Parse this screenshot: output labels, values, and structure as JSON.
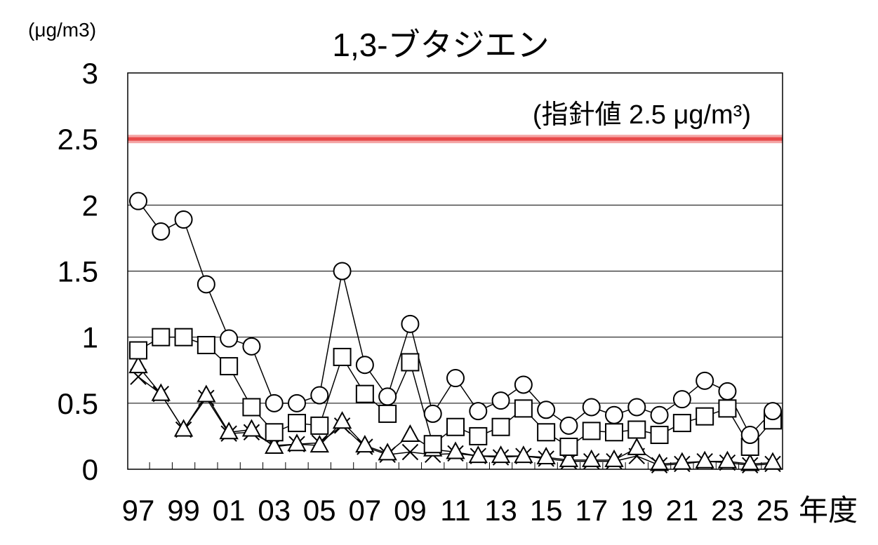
{
  "chart_data": {
    "type": "line",
    "title": "1,3-ブタジエン",
    "ylabel": "(μg/m3)",
    "xlabel": "年度",
    "ylim": [
      0,
      3
    ],
    "yticks": [
      "0",
      "0.5",
      "1",
      "1.5",
      "2",
      "2.5",
      "3"
    ],
    "grid": true,
    "x": [
      "97",
      "98",
      "99",
      "00",
      "01",
      "02",
      "03",
      "04",
      "05",
      "06",
      "07",
      "08",
      "09",
      "10",
      "11",
      "12",
      "13",
      "14",
      "15",
      "16",
      "17",
      "18",
      "19",
      "20",
      "21",
      "22",
      "23",
      "24",
      "25"
    ],
    "xtick_labels": [
      "97",
      "99",
      "01",
      "03",
      "05",
      "07",
      "09",
      "11",
      "13",
      "15",
      "17",
      "19",
      "21",
      "23",
      "25"
    ],
    "guideline": {
      "value": 2.5,
      "label": "(指針値 2.5 μg/m³)",
      "color": "#e84a4a"
    },
    "series": [
      {
        "marker": "circle",
        "values": [
          2.03,
          1.8,
          1.89,
          1.4,
          0.99,
          0.93,
          0.5,
          0.5,
          0.56,
          1.5,
          0.79,
          0.55,
          1.1,
          0.42,
          0.69,
          0.44,
          0.52,
          0.64,
          0.45,
          0.33,
          0.47,
          0.41,
          0.47,
          0.41,
          0.53,
          0.67,
          0.59,
          0.26,
          0.44
        ]
      },
      {
        "marker": "square",
        "values": [
          0.9,
          1.0,
          1.0,
          0.94,
          0.78,
          0.47,
          0.28,
          0.35,
          0.33,
          0.85,
          0.57,
          0.42,
          0.81,
          0.19,
          0.32,
          0.25,
          0.32,
          0.46,
          0.28,
          0.17,
          0.29,
          0.28,
          0.3,
          0.26,
          0.35,
          0.4,
          0.46,
          0.17,
          0.37
        ]
      },
      {
        "marker": "triangle",
        "values": [
          0.78,
          0.57,
          0.3,
          0.56,
          0.28,
          0.3,
          0.17,
          0.19,
          0.18,
          0.36,
          0.18,
          0.12,
          0.26,
          0.15,
          0.13,
          0.1,
          0.1,
          0.1,
          0.09,
          0.07,
          0.07,
          0.07,
          0.16,
          0.04,
          0.05,
          0.06,
          0.06,
          0.04,
          0.05
        ]
      },
      {
        "marker": "cross",
        "values": [
          0.7,
          0.57,
          0.3,
          0.54,
          0.27,
          0.28,
          0.18,
          0.19,
          0.2,
          0.33,
          0.17,
          0.11,
          0.13,
          0.11,
          0.12,
          0.1,
          0.09,
          0.1,
          0.08,
          0.06,
          0.06,
          0.06,
          0.1,
          0.03,
          0.04,
          0.06,
          0.05,
          0.03,
          0.04
        ]
      }
    ]
  }
}
